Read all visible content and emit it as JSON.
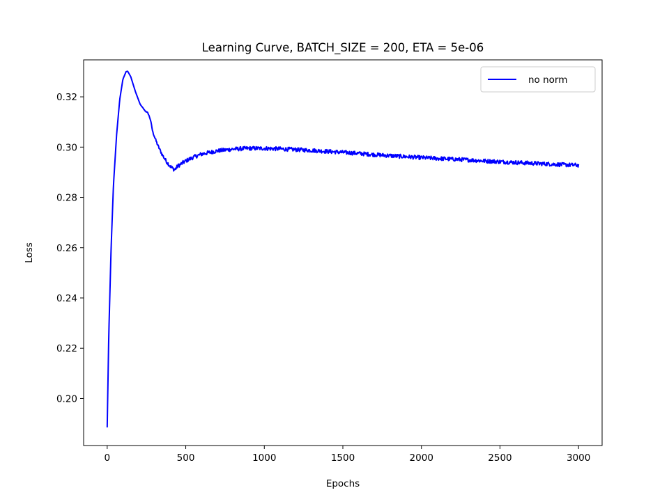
{
  "chart_data": {
    "type": "line",
    "title": "Learning Curve, BATCH_SIZE = 200, ETA = 5e-06",
    "xlabel": "Epochs",
    "ylabel": "Loss",
    "xlim": [
      -150,
      3150
    ],
    "ylim": [
      0.1813,
      0.3347
    ],
    "xticks": [
      0,
      500,
      1000,
      1500,
      2000,
      2500,
      3000
    ],
    "xtick_labels": [
      "0",
      "500",
      "1000",
      "1500",
      "2000",
      "2500",
      "3000"
    ],
    "yticks": [
      0.2,
      0.22,
      0.24,
      0.26,
      0.28,
      0.3,
      0.32
    ],
    "ytick_labels": [
      "0.20",
      "0.22",
      "0.24",
      "0.26",
      "0.28",
      "0.30",
      "0.32"
    ],
    "grid": false,
    "legend_position": "top-right",
    "series": [
      {
        "name": "no norm",
        "color": "#0000ff",
        "noise": 0.0008,
        "x": [
          0,
          10,
          25,
          40,
          60,
          80,
          100,
          120,
          130,
          150,
          180,
          210,
          240,
          260,
          275,
          290,
          320,
          350,
          380,
          410,
          430,
          450,
          500,
          550,
          600,
          700,
          800,
          900,
          1000,
          1100,
          1200,
          1300,
          1400,
          1500,
          1600,
          1700,
          1800,
          1900,
          2000,
          2100,
          2200,
          2300,
          2400,
          2500,
          2600,
          2700,
          2800,
          2900,
          3000
        ],
        "y": [
          0.1885,
          0.225,
          0.26,
          0.285,
          0.305,
          0.319,
          0.327,
          0.33,
          0.3302,
          0.328,
          0.322,
          0.317,
          0.3145,
          0.3135,
          0.311,
          0.306,
          0.301,
          0.297,
          0.294,
          0.2918,
          0.291,
          0.2925,
          0.2945,
          0.296,
          0.2972,
          0.2985,
          0.2992,
          0.2995,
          0.2995,
          0.2993,
          0.299,
          0.2987,
          0.2983,
          0.2979,
          0.2975,
          0.297,
          0.2966,
          0.2962,
          0.2958,
          0.2955,
          0.2952,
          0.2949,
          0.2945,
          0.2942,
          0.2939,
          0.2936,
          0.2933,
          0.293,
          0.2928
        ]
      }
    ]
  }
}
